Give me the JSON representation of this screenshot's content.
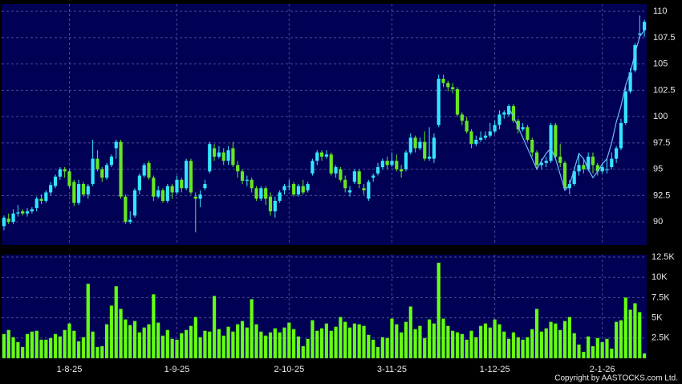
{
  "chart_data": {
    "type": "candlestick",
    "up_color": "#33e6ff",
    "down_color": "#66e622",
    "volume_color": "#66ff11",
    "overlay_color": "#6fb8ff",
    "panel_color": "#000055",
    "grid": true,
    "categories": [
      null,
      null,
      null,
      null,
      null,
      null,
      null,
      null,
      null,
      null,
      null,
      null,
      null,
      null,
      "1-8-25",
      null,
      null,
      null,
      null,
      null,
      null,
      null,
      null,
      null,
      null,
      null,
      null,
      null,
      null,
      null,
      null,
      null,
      null,
      null,
      null,
      null,
      null,
      "1-9-25",
      null,
      null,
      null,
      null,
      null,
      null,
      null,
      null,
      null,
      null,
      null,
      null,
      null,
      null,
      null,
      null,
      null,
      null,
      null,
      null,
      null,
      null,
      null,
      "2-10-25",
      null,
      null,
      null,
      null,
      null,
      null,
      null,
      null,
      null,
      null,
      null,
      null,
      null,
      null,
      null,
      null,
      null,
      null,
      null,
      null,
      null,
      "3-11-25",
      null,
      null,
      null,
      null,
      null,
      null,
      null,
      null,
      null,
      null,
      null,
      null,
      null,
      null,
      null,
      null,
      null,
      null,
      null,
      null,
      null,
      "1-12-25",
      null,
      null,
      null,
      null,
      null,
      null,
      null,
      null,
      null,
      null,
      null,
      null,
      null,
      null,
      null,
      null,
      null,
      null,
      null,
      null,
      null,
      null,
      "2-1-26",
      null,
      null,
      null,
      null,
      null,
      null,
      null,
      null,
      null
    ],
    "open": [
      89.6,
      90.3,
      90.0,
      90.8,
      91.0,
      90.8,
      91.0,
      91.3,
      92.2,
      92.0,
      92.8,
      93.4,
      94.3,
      95.0,
      94.8,
      93.8,
      91.8,
      93.6,
      92.6,
      93.6,
      96.0,
      95.0,
      94.2,
      95.4,
      97.0,
      97.6,
      92.4,
      90.0,
      90.6,
      93.0,
      94.4,
      95.6,
      94.2,
      92.4,
      93.0,
      92.0,
      93.4,
      92.8,
      94.0,
      93.2,
      95.8,
      92.4,
      92.2,
      93.2,
      94.8,
      97.0,
      96.2,
      96.6,
      95.8,
      97.0,
      95.4,
      94.8,
      93.9,
      94.0,
      93.2,
      92.2,
      93.2,
      92.4,
      91.0,
      92.0,
      93.0,
      93.4,
      93.6,
      92.6,
      93.4,
      93.0,
      94.6,
      95.8,
      96.6,
      96.2,
      96.4,
      94.6,
      95.0,
      94.0,
      92.8,
      93.8,
      94.8,
      93.2,
      92.2,
      94.2,
      94.6,
      95.2,
      95.8,
      95.4,
      95.8,
      95.0,
      95.0,
      96.6,
      98.0,
      97.0,
      97.6,
      96.0,
      96.0,
      99.2,
      103.6,
      103.2,
      102.8,
      102.6,
      100.2,
      99.6,
      98.6,
      97.4,
      97.8,
      98.0,
      98.2,
      98.6,
      99.2,
      100.2,
      100.2,
      101.0,
      99.6,
      98.8,
      99.0,
      97.8,
      96.6,
      95.4,
      95.6,
      95.8,
      99.2,
      96.2,
      95.6,
      93.2,
      93.6,
      94.8,
      95.4,
      95.0,
      96.2,
      95.4,
      94.8,
      95.0,
      95.2,
      96.0,
      97.0,
      99.4,
      102.4,
      104.4,
      107.8,
      108.2
    ],
    "high": [
      90.6,
      90.8,
      91.2,
      91.6,
      91.2,
      91.3,
      91.4,
      92.4,
      92.6,
      93.0,
      93.8,
      94.5,
      95.2,
      95.2,
      95.0,
      94.0,
      94.0,
      93.8,
      93.6,
      97.8,
      96.8,
      95.2,
      95.6,
      96.4,
      97.8,
      97.8,
      92.6,
      91.0,
      93.2,
      94.6,
      95.6,
      95.8,
      94.4,
      93.4,
      93.2,
      93.6,
      93.6,
      94.4,
      94.2,
      96.0,
      96.0,
      92.8,
      93.0,
      94.0,
      97.6,
      97.4,
      97.2,
      97.0,
      97.2,
      97.6,
      95.8,
      95.0,
      94.4,
      94.2,
      93.4,
      93.4,
      93.4,
      92.8,
      92.4,
      93.0,
      93.6,
      94.0,
      93.8,
      93.6,
      94.0,
      93.8,
      96.0,
      96.8,
      96.8,
      96.8,
      96.6,
      95.4,
      95.2,
      94.4,
      93.4,
      95.0,
      95.0,
      93.6,
      94.0,
      94.6,
      95.6,
      96.0,
      96.2,
      96.6,
      96.4,
      95.4,
      96.8,
      98.4,
      98.2,
      98.0,
      98.6,
      99.0,
      98.4,
      104.0,
      104.0,
      103.4,
      103.2,
      102.8,
      100.4,
      100.0,
      98.8,
      98.2,
      98.6,
      98.6,
      99.4,
      99.6,
      100.6,
      100.6,
      101.2,
      101.2,
      99.8,
      99.4,
      99.2,
      98.0,
      96.8,
      96.0,
      96.2,
      99.4,
      99.4,
      97.4,
      95.8,
      94.0,
      95.2,
      96.4,
      96.0,
      96.6,
      96.6,
      95.6,
      95.6,
      96.0,
      96.6,
      97.2,
      99.8,
      102.8,
      104.6,
      107.0,
      109.6,
      109.2
    ],
    "low": [
      89.2,
      89.8,
      89.8,
      90.5,
      90.6,
      90.5,
      90.8,
      91.0,
      91.7,
      91.8,
      92.5,
      93.2,
      94.0,
      94.2,
      93.2,
      91.5,
      91.6,
      92.4,
      92.2,
      93.4,
      94.8,
      93.8,
      94.0,
      95.2,
      96.0,
      92.2,
      89.8,
      89.8,
      90.4,
      92.6,
      94.2,
      94.0,
      92.0,
      92.2,
      91.8,
      91.8,
      92.2,
      92.6,
      92.8,
      93.0,
      92.6,
      89.0,
      91.4,
      93.0,
      94.6,
      95.8,
      96.0,
      95.4,
      95.4,
      95.2,
      94.2,
      93.6,
      93.4,
      92.8,
      92.0,
      92.0,
      91.6,
      90.6,
      90.4,
      91.8,
      92.6,
      93.0,
      92.4,
      92.4,
      92.6,
      92.8,
      94.4,
      95.4,
      95.8,
      96.0,
      94.4,
      94.2,
      93.8,
      92.8,
      92.4,
      93.6,
      93.2,
      92.6,
      92.0,
      93.8,
      94.4,
      95.0,
      95.0,
      95.2,
      94.8,
      94.2,
      94.8,
      96.4,
      96.6,
      96.8,
      95.8,
      95.8,
      95.6,
      99.0,
      102.8,
      102.4,
      102.2,
      100.0,
      99.2,
      98.4,
      97.0,
      97.2,
      97.6,
      97.8,
      98.0,
      98.4,
      98.8,
      99.8,
      100.0,
      99.4,
      98.4,
      98.6,
      97.6,
      96.2,
      95.0,
      95.0,
      95.2,
      95.6,
      96.0,
      95.2,
      93.0,
      92.6,
      93.4,
      94.4,
      94.6,
      94.8,
      94.6,
      94.4,
      94.6,
      94.6,
      95.0,
      95.6,
      96.8,
      99.2,
      102.2,
      104.2,
      107.4,
      107.6
    ],
    "close": [
      90.4,
      90.0,
      90.8,
      90.9,
      90.8,
      91.0,
      91.2,
      92.2,
      92.0,
      92.8,
      93.5,
      94.3,
      95.0,
      94.8,
      93.4,
      91.8,
      93.6,
      92.6,
      93.4,
      96.0,
      95.0,
      94.2,
      95.4,
      96.2,
      97.6,
      92.4,
      90.0,
      90.2,
      93.0,
      94.4,
      95.4,
      94.2,
      92.4,
      93.0,
      92.0,
      93.4,
      92.8,
      94.0,
      93.2,
      95.8,
      92.8,
      92.2,
      92.6,
      93.6,
      97.4,
      96.2,
      96.6,
      95.8,
      96.8,
      95.4,
      94.8,
      93.9,
      94.0,
      93.2,
      92.2,
      93.2,
      92.2,
      91.0,
      92.0,
      92.8,
      93.4,
      93.4,
      92.6,
      93.4,
      92.8,
      93.6,
      95.8,
      96.6,
      96.2,
      96.4,
      94.6,
      95.2,
      94.0,
      93.2,
      93.0,
      94.8,
      93.6,
      93.0,
      93.8,
      94.4,
      95.2,
      95.8,
      95.4,
      95.8,
      95.0,
      94.8,
      96.6,
      98.0,
      97.0,
      97.6,
      96.0,
      96.2,
      98.0,
      103.6,
      103.2,
      102.8,
      102.6,
      100.2,
      99.6,
      98.6,
      97.4,
      97.8,
      98.0,
      98.2,
      98.6,
      99.2,
      100.2,
      100.4,
      101.0,
      99.6,
      98.8,
      99.0,
      97.8,
      96.6,
      95.4,
      95.6,
      95.8,
      99.2,
      96.2,
      95.6,
      93.2,
      93.6,
      94.8,
      95.4,
      95.0,
      96.2,
      95.4,
      94.8,
      95.2,
      95.0,
      96.0,
      97.0,
      99.4,
      102.4,
      104.2,
      106.8,
      107.9,
      109.0
    ],
    "overlay": [
      null,
      null,
      null,
      null,
      null,
      null,
      null,
      null,
      null,
      null,
      null,
      null,
      null,
      null,
      null,
      null,
      null,
      null,
      null,
      null,
      null,
      null,
      null,
      null,
      null,
      null,
      null,
      null,
      null,
      null,
      null,
      null,
      null,
      null,
      null,
      null,
      null,
      null,
      null,
      null,
      null,
      null,
      null,
      null,
      null,
      null,
      null,
      null,
      null,
      null,
      null,
      null,
      null,
      null,
      null,
      null,
      null,
      null,
      null,
      null,
      null,
      null,
      null,
      null,
      null,
      null,
      null,
      null,
      null,
      null,
      null,
      null,
      null,
      null,
      null,
      null,
      null,
      null,
      null,
      null,
      null,
      null,
      null,
      null,
      null,
      null,
      null,
      null,
      null,
      null,
      null,
      null,
      null,
      null,
      null,
      null,
      null,
      null,
      null,
      null,
      null,
      null,
      null,
      null,
      null,
      null,
      null,
      null,
      100.8,
      100.0,
      99.0,
      98.0,
      97.0,
      96.0,
      95.0,
      95.8,
      96.5,
      97.0,
      96.0,
      94.5,
      93.0,
      93.5,
      95.0,
      96.5,
      96.0,
      95.0,
      94.2,
      94.8,
      95.5,
      96.0,
      97.5,
      99.5,
      101.0,
      103.0,
      104.2,
      106.0,
      107.6,
      108.2
    ],
    "volume": [
      3000,
      3500,
      2600,
      2000,
      1400,
      3000,
      3300,
      3400,
      2300,
      2300,
      2500,
      3000,
      2700,
      3500,
      4300,
      3400,
      2100,
      2600,
      9200,
      3300,
      1400,
      1500,
      4200,
      6500,
      8900,
      6100,
      4800,
      4100,
      4600,
      3200,
      3800,
      4200,
      7900,
      4400,
      2800,
      3500,
      2400,
      2300,
      3100,
      3500,
      4000,
      5100,
      2600,
      3400,
      3300,
      7700,
      3600,
      2800,
      3900,
      3300,
      4200,
      4600,
      3800,
      7300,
      4200,
      3300,
      2800,
      3200,
      3700,
      3200,
      3800,
      4400,
      3600,
      2700,
      1500,
      2400,
      4700,
      3400,
      3700,
      4300,
      3400,
      3900,
      5100,
      4500,
      3800,
      4300,
      4200,
      4000,
      2900,
      2300,
      1400,
      2600,
      2500,
      4900,
      4200,
      3200,
      4500,
      6400,
      3600,
      4000,
      2500,
      4800,
      4300,
      11800,
      4900,
      4000,
      3400,
      3200,
      3000,
      2300,
      3400,
      2600,
      4000,
      4300,
      3800,
      4800,
      4200,
      3300,
      2400,
      3200,
      2600,
      2300,
      2600,
      3600,
      6100,
      3300,
      3700,
      4500,
      4300,
      3500,
      4600,
      5100,
      3100,
      1700,
      800,
      2700,
      1500,
      2500,
      2000,
      2400,
      1200,
      4500,
      4700,
      7500,
      6000,
      6800,
      5700,
      600
    ],
    "ylim": [
      87.8,
      110.7
    ],
    "yticks": [
      90,
      92.5,
      95,
      97.5,
      100,
      102.5,
      105,
      107.5,
      110
    ],
    "volume_ylim": [
      0,
      12800
    ],
    "volume_yticks": [
      {
        "value": 2500,
        "label": "2.5K"
      },
      {
        "value": 5000,
        "label": "5K"
      },
      {
        "value": 7500,
        "label": "7.5K"
      },
      {
        "value": 10000,
        "label": "10K"
      },
      {
        "value": 12500,
        "label": "12.5K"
      }
    ],
    "copyright": "Copyright by AASTOCKS.com Ltd."
  }
}
